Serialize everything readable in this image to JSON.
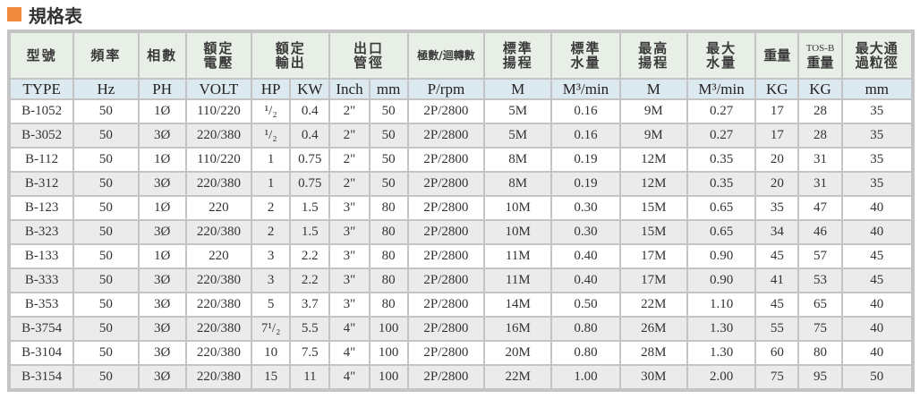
{
  "section_title": "規格表",
  "header": {
    "cols": [
      "型號",
      "頻率",
      "相數",
      "額定\n電壓",
      "額定\n輸出",
      "出口\n管徑",
      "極數/迴轉數",
      "標準\n揚程",
      "標準\n水量",
      "最高\n揚程",
      "最大\n水量",
      "重量",
      "重量",
      "最大通\n過粒徑"
    ],
    "tos_label": "TOS-B",
    "units": [
      "TYPE",
      "Hz",
      "PH",
      "VOLT",
      "HP",
      "KW",
      "Inch",
      "mm",
      "P/rpm",
      "M",
      "M³/min",
      "M",
      "M³/min",
      "KG",
      "KG",
      "mm"
    ]
  },
  "rows": [
    [
      "B-1052",
      "50",
      "1Ø",
      "110/220",
      "¹/₂",
      "0.4",
      "2\"",
      "50",
      "2P/2800",
      "5M",
      "0.16",
      "9M",
      "0.27",
      "17",
      "28",
      "35"
    ],
    [
      "B-3052",
      "50",
      "3Ø",
      "220/380",
      "¹/₂",
      "0.4",
      "2\"",
      "50",
      "2P/2800",
      "5M",
      "0.16",
      "9M",
      "0.27",
      "17",
      "28",
      "35"
    ],
    [
      "B-112",
      "50",
      "1Ø",
      "110/220",
      "1",
      "0.75",
      "2\"",
      "50",
      "2P/2800",
      "8M",
      "0.19",
      "12M",
      "0.35",
      "20",
      "31",
      "35"
    ],
    [
      "B-312",
      "50",
      "3Ø",
      "220/380",
      "1",
      "0.75",
      "2\"",
      "50",
      "2P/2800",
      "8M",
      "0.19",
      "12M",
      "0.35",
      "20",
      "31",
      "35"
    ],
    [
      "B-123",
      "50",
      "1Ø",
      "220",
      "2",
      "1.5",
      "3\"",
      "80",
      "2P/2800",
      "10M",
      "0.30",
      "15M",
      "0.65",
      "35",
      "47",
      "40"
    ],
    [
      "B-323",
      "50",
      "3Ø",
      "220/380",
      "2",
      "1.5",
      "3\"",
      "80",
      "2P/2800",
      "10M",
      "0.30",
      "15M",
      "0.65",
      "34",
      "46",
      "40"
    ],
    [
      "B-133",
      "50",
      "1Ø",
      "220",
      "3",
      "2.2",
      "3\"",
      "80",
      "2P/2800",
      "11M",
      "0.40",
      "17M",
      "0.90",
      "45",
      "57",
      "45"
    ],
    [
      "B-333",
      "50",
      "3Ø",
      "220/380",
      "3",
      "2.2",
      "3\"",
      "80",
      "2P/2800",
      "11M",
      "0.40",
      "17M",
      "0.90",
      "41",
      "53",
      "45"
    ],
    [
      "B-353",
      "50",
      "3Ø",
      "220/380",
      "5",
      "3.7",
      "3\"",
      "80",
      "2P/2800",
      "14M",
      "0.50",
      "22M",
      "1.10",
      "45",
      "65",
      "40"
    ],
    [
      "B-3754",
      "50",
      "3Ø",
      "220/380",
      "7¹/₂",
      "5.5",
      "4\"",
      "100",
      "2P/2800",
      "16M",
      "0.80",
      "26M",
      "1.30",
      "55",
      "75",
      "40"
    ],
    [
      "B-3104",
      "50",
      "3Ø",
      "220/380",
      "10",
      "7.5",
      "4\"",
      "100",
      "2P/2800",
      "20M",
      "0.80",
      "28M",
      "1.30",
      "60",
      "80",
      "40"
    ],
    [
      "B-3154",
      "50",
      "3Ø",
      "220/380",
      "15",
      "11",
      "4\"",
      "100",
      "2P/2800",
      "22M",
      "1.00",
      "30M",
      "2.00",
      "75",
      "95",
      "50"
    ]
  ],
  "colors": {
    "accent": "#f08a3c",
    "header_bg": "#e8efe6",
    "unit_bg": "#dde9f1",
    "stripe_bg": "#ebebeb",
    "border": "#c4c4c4"
  }
}
